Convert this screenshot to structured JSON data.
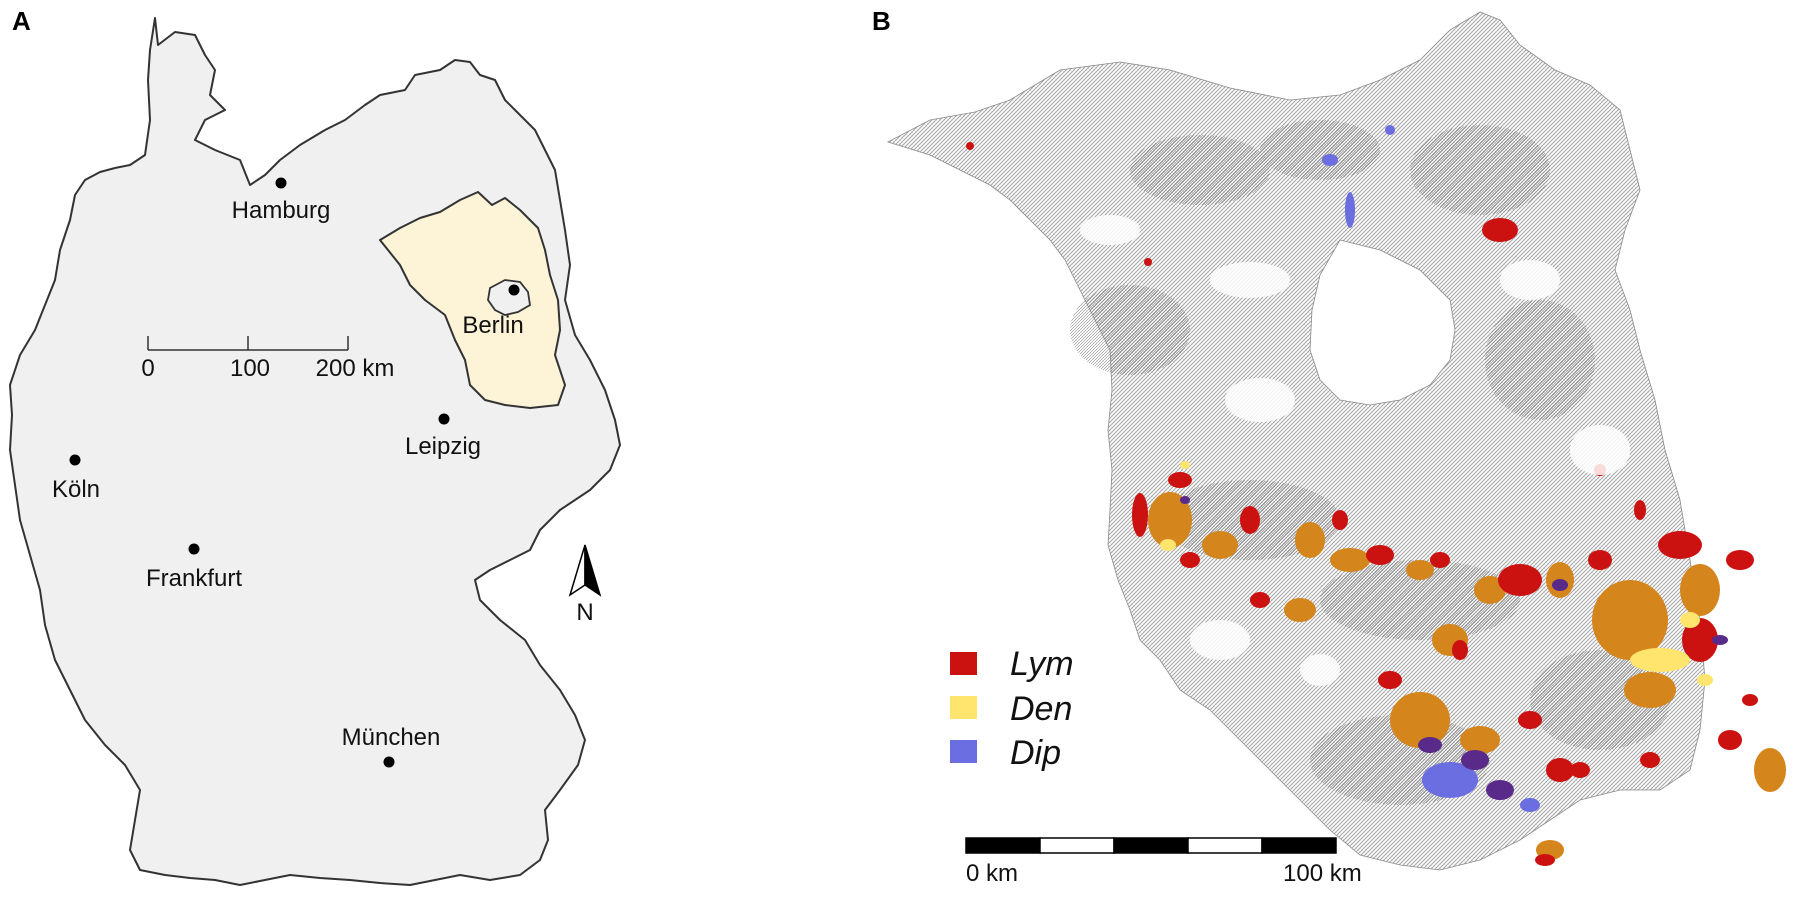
{
  "panels": {
    "a": {
      "label": "A",
      "cities": [
        {
          "name": "Hamburg"
        },
        {
          "name": "Berlin"
        },
        {
          "name": "Leipzig"
        },
        {
          "name": "Köln"
        },
        {
          "name": "Frankfurt"
        },
        {
          "name": "München"
        }
      ],
      "scale": {
        "ticks": [
          "0",
          "100",
          "200 km"
        ]
      },
      "north": {
        "label": "N"
      },
      "colors": {
        "country": "#f0f0f0",
        "highlight": "#fdf4d8",
        "outline": "#333333"
      }
    },
    "b": {
      "label": "B",
      "legend": [
        {
          "label": "Lym",
          "color": "#cc1111"
        },
        {
          "label": "Den",
          "color": "#ffe46e"
        },
        {
          "label": "Dip",
          "color": "#6a6ee0"
        }
      ],
      "scale": {
        "start": "0 km",
        "end": "100 km"
      },
      "colors": {
        "base": "#9a9a9a",
        "orange": "#d4851c",
        "purple": "#5a2a8a"
      }
    }
  }
}
